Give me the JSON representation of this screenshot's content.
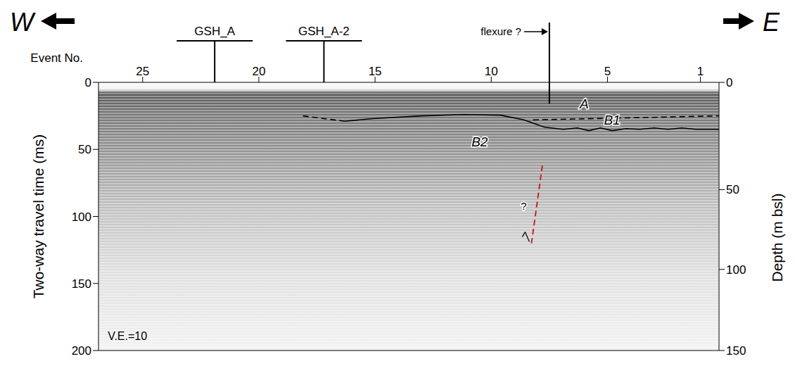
{
  "chart_data": {
    "type": "seismic_profile",
    "x_label": "Event No.",
    "y_label": "Two-way travel time (ms)",
    "y2_label": "Depth (m bsl)",
    "xlim": [
      26.9,
      0.2
    ],
    "xticks": [
      25,
      20,
      15,
      10,
      5,
      1
    ],
    "ylim": [
      0,
      200
    ],
    "yticks": [
      0,
      50,
      100,
      150,
      200
    ],
    "depth_ticks": [
      {
        "depth": 0,
        "twt": 0
      },
      {
        "depth": 50,
        "twt": 80
      },
      {
        "depth": 100,
        "twt": 139.5
      },
      {
        "depth": 150,
        "twt": 200
      }
    ],
    "direction_labels": {
      "left": "W",
      "right": "E"
    },
    "wells": [
      {
        "name": "GSH_A",
        "x": 21.9
      },
      {
        "name": "GSH_A-2",
        "x": 17.2
      }
    ],
    "flexure": {
      "label": "flexure ?",
      "x": 7.5,
      "bottom": 16
    },
    "horizons": [
      {
        "color": "#000000",
        "line_style": "solid",
        "x": [
          16.3,
          15.1,
          13,
          11.2,
          9.6,
          8.6,
          7.7,
          6.9,
          6.3,
          5.8,
          5.3,
          4.8,
          4.2,
          3.6,
          3,
          2.4,
          1.8,
          1.2,
          0.2
        ],
        "values": [
          29,
          27,
          25,
          24,
          24.5,
          28,
          33.5,
          35,
          34,
          36,
          34,
          36,
          34.5,
          35,
          34,
          35,
          34,
          35,
          35
        ]
      },
      {
        "color": "#000000",
        "line_style": "dashed",
        "x": [
          18.1,
          16.3
        ],
        "values": [
          25,
          29
        ]
      },
      {
        "color": "#000000",
        "line_style": "dashed",
        "x": [
          8.2,
          0.2
        ],
        "values": [
          28,
          25
        ]
      }
    ],
    "fault": {
      "color": "#c8202a",
      "line_style": "dashed",
      "x": [
        7.8,
        8.27
      ],
      "values": [
        62,
        120
      ],
      "label": "?",
      "label_x": 8.6,
      "label_y": 95
    },
    "unit_labels": [
      {
        "text": "A",
        "x": 6.0,
        "y": 17
      },
      {
        "text": "B1",
        "x": 4.8,
        "y": 29
      },
      {
        "text": "B2",
        "x": 10.5,
        "y": 45
      }
    ],
    "annotations": [
      {
        "text": "V.E.=10",
        "x": 26.5,
        "y": 192
      }
    ]
  }
}
